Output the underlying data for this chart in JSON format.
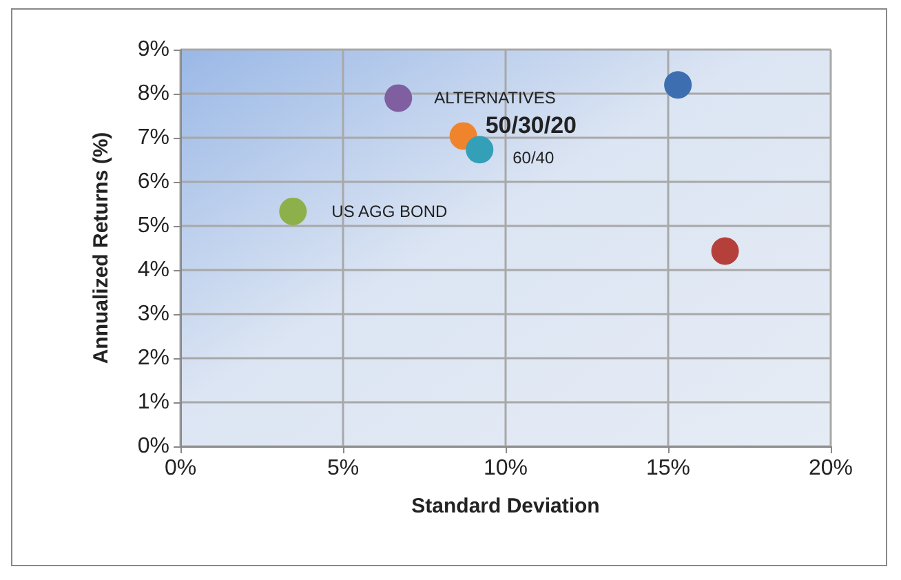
{
  "chart_data": {
    "type": "scatter",
    "xlabel": "Standard Deviation",
    "ylabel": "Annualized Returns (%)",
    "series": [
      {
        "name": "ALTERNATIVES",
        "color": "#7f5fa0",
        "x": [
          6.7
        ],
        "values": [
          7.9
        ]
      },
      {
        "name": "50/30/20",
        "color": "#f0842c",
        "x": [
          8.7
        ],
        "values": [
          7.04
        ]
      },
      {
        "name": "60/40",
        "color": "#34a0b8",
        "x": [
          9.2
        ],
        "values": [
          6.73
        ]
      },
      {
        "name": "US AGG BOND",
        "color": "#8db04a",
        "x": [
          3.46
        ],
        "values": [
          5.33
        ]
      },
      {
        "color": "#3d6fb0",
        "x": [
          15.3
        ],
        "values": [
          8.2
        ]
      },
      {
        "color": "#b5403b",
        "x": [
          16.75
        ],
        "values": [
          4.43
        ]
      }
    ],
    "xlim": [
      0,
      20
    ],
    "xticks": [
      {
        "value": 0,
        "label": "0%"
      },
      {
        "value": 5,
        "label": "5%"
      },
      {
        "value": 10,
        "label": "10%"
      },
      {
        "value": 15,
        "label": "15%"
      },
      {
        "value": 20,
        "label": "20%"
      }
    ],
    "ylim": [
      0,
      9
    ],
    "yticks": [
      {
        "value": 0,
        "label": "0%"
      },
      {
        "value": 1,
        "label": "1%"
      },
      {
        "value": 2,
        "label": "2%"
      },
      {
        "value": 3,
        "label": "3%"
      },
      {
        "value": 4,
        "label": "4%"
      },
      {
        "value": 5,
        "label": "5%"
      },
      {
        "value": 6,
        "label": "6%"
      },
      {
        "value": 7,
        "label": "7%"
      },
      {
        "value": 8,
        "label": "8%"
      },
      {
        "value": 9,
        "label": "9%"
      }
    ],
    "grid": true,
    "legend": false,
    "marker": "circle"
  }
}
